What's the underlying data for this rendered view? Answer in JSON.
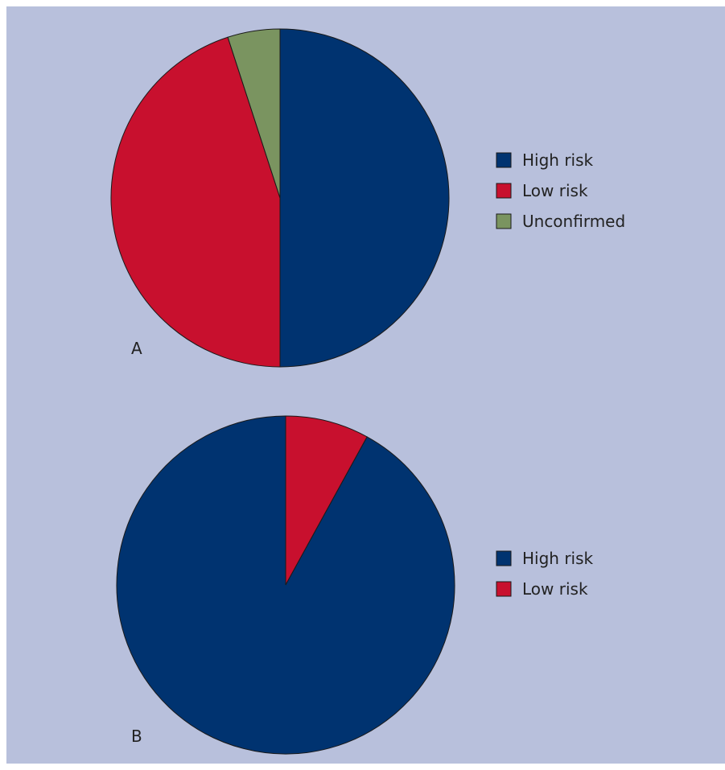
{
  "colors": {
    "background": "#b8c0dc",
    "High risk": "#003370",
    "Low risk": "#c8102e",
    "Unconfirmed": "#7a9460"
  },
  "chart_data": [
    {
      "type": "pie",
      "panel_label": "A",
      "categories": [
        "High risk",
        "Low risk",
        "Unconfirmed"
      ],
      "values": [
        50,
        45,
        5
      ],
      "legend": [
        "High risk",
        "Low risk",
        "Unconfirmed"
      ],
      "legend_position": "right"
    },
    {
      "type": "pie",
      "panel_label": "B",
      "categories": [
        "High risk",
        "Low risk"
      ],
      "values": [
        92,
        8
      ],
      "legend": [
        "High risk",
        "Low risk"
      ],
      "legend_position": "right"
    }
  ]
}
